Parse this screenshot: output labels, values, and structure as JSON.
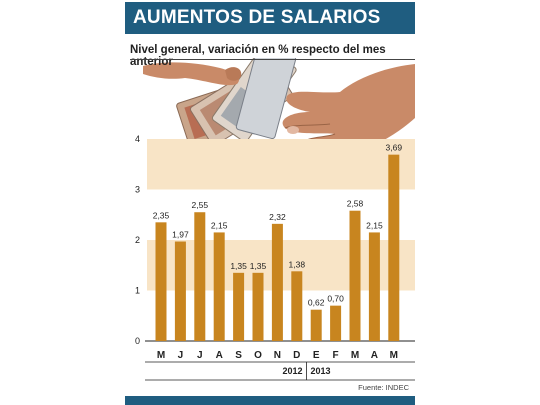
{
  "title": "AUMENTOS DE SALARIOS",
  "subtitle": "Nivel general, variación en % respecto del mes anterior",
  "source": "Fuente: INDEC",
  "colors": {
    "header": "#1f5d80",
    "bar": "#c8851f",
    "band": "#f8e4c6"
  },
  "chart_data": {
    "type": "bar",
    "title": "AUMENTOS DE SALARIOS",
    "subtitle": "Nivel general, variación en % respecto del mes anterior",
    "categories": [
      "M",
      "J",
      "J",
      "A",
      "S",
      "O",
      "N",
      "D",
      "E",
      "F",
      "M",
      "A",
      "M"
    ],
    "values": [
      2.35,
      1.97,
      2.55,
      2.15,
      1.35,
      1.35,
      2.32,
      1.38,
      0.62,
      0.7,
      2.58,
      2.15,
      3.69
    ],
    "value_labels": [
      "2,35",
      "1,97",
      "2,55",
      "2,15",
      "1,35",
      "1,35",
      "2,32",
      "1,38",
      "0,62",
      "0,70",
      "2,58",
      "2,15",
      "3,69"
    ],
    "yticks": [
      "0",
      "1",
      "2",
      "3",
      "4"
    ],
    "ylim": [
      0,
      4
    ],
    "years": [
      {
        "label": "2012",
        "from": 0,
        "to": 7
      },
      {
        "label": "2013",
        "from": 8,
        "to": 12
      }
    ],
    "bands": [
      [
        1,
        2
      ],
      [
        3,
        4
      ]
    ],
    "grid": false,
    "legend": "none"
  }
}
